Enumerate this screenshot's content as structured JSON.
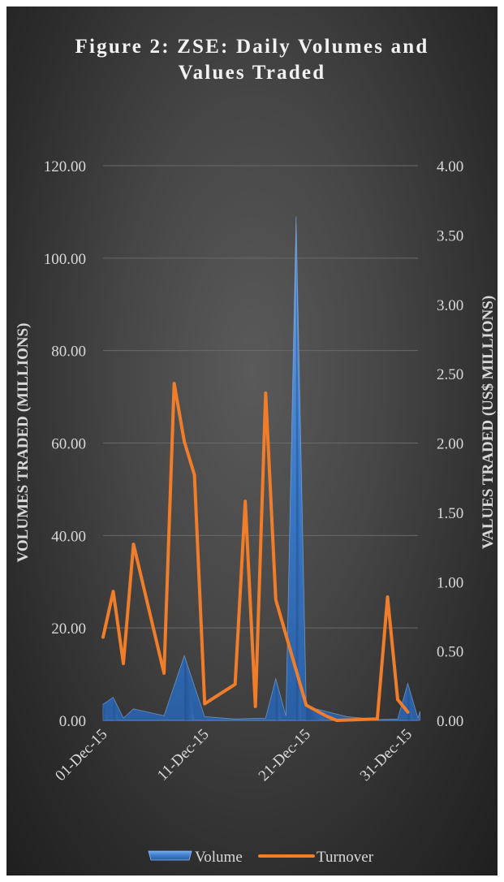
{
  "chart_data": {
    "type": "area+line",
    "title_lines": [
      "Figure 2: ZSE: Daily Volumes and",
      "Values Traded"
    ],
    "ylabel_left": "VOLUMES TRADED (MILLIONS)",
    "ylabel_right": "VALUES TRADED (US$ MILLIONS)",
    "ylim_left": [
      0,
      120
    ],
    "ylim_right": [
      0,
      4
    ],
    "yticks_left": [
      "0.00",
      "20.00",
      "40.00",
      "60.00",
      "80.00",
      "100.00",
      "120.00"
    ],
    "yticks_right": [
      "0.00",
      "0.50",
      "1.00",
      "1.50",
      "2.00",
      "2.50",
      "3.00",
      "3.50",
      "4.00"
    ],
    "xticks": [
      {
        "day": 1,
        "label": "01-Dec-15"
      },
      {
        "day": 11,
        "label": "11-Dec-15"
      },
      {
        "day": 21,
        "label": "21-Dec-15"
      },
      {
        "day": 31,
        "label": "31-Dec-15"
      }
    ],
    "xlim_days": [
      1,
      32
    ],
    "grid": true,
    "legend_position": "bottom",
    "series": [
      {
        "name": "Volume",
        "kind": "area",
        "axis": "left",
        "color": "#4f8ad6",
        "points": [
          {
            "day": 1,
            "value": 3.5
          },
          {
            "day": 2,
            "value": 5.0
          },
          {
            "day": 3,
            "value": 0.5
          },
          {
            "day": 4,
            "value": 2.5
          },
          {
            "day": 7,
            "value": 1.0
          },
          {
            "day": 9,
            "value": 14.0
          },
          {
            "day": 11,
            "value": 0.8
          },
          {
            "day": 14,
            "value": 0.3
          },
          {
            "day": 17,
            "value": 0.5
          },
          {
            "day": 18,
            "value": 9.0
          },
          {
            "day": 19,
            "value": 1.0
          },
          {
            "day": 20,
            "value": 109.0
          },
          {
            "day": 21,
            "value": 3.0
          },
          {
            "day": 25,
            "value": 0.8
          },
          {
            "day": 28,
            "value": 0.2
          },
          {
            "day": 30,
            "value": 0.3
          },
          {
            "day": 31,
            "value": 8.0
          },
          {
            "day": 32,
            "value": 0.5
          },
          {
            "day": 32.5,
            "value": 2.0
          },
          {
            "day": 33,
            "value": 0.3
          }
        ]
      },
      {
        "name": "Turnover",
        "kind": "line",
        "axis": "right",
        "color": "#f07d2a",
        "points": [
          {
            "day": 1,
            "value": 0.6
          },
          {
            "day": 2,
            "value": 0.93
          },
          {
            "day": 3,
            "value": 0.41
          },
          {
            "day": 4,
            "value": 1.27
          },
          {
            "day": 7,
            "value": 0.34
          },
          {
            "day": 8,
            "value": 2.43
          },
          {
            "day": 9,
            "value": 2.01
          },
          {
            "day": 10,
            "value": 1.77
          },
          {
            "day": 11,
            "value": 0.12
          },
          {
            "day": 14,
            "value": 0.26
          },
          {
            "day": 15,
            "value": 1.58
          },
          {
            "day": 16,
            "value": 0.1
          },
          {
            "day": 17,
            "value": 2.36
          },
          {
            "day": 18,
            "value": 0.87
          },
          {
            "day": 21,
            "value": 0.11
          },
          {
            "day": 23,
            "value": 0.03
          },
          {
            "day": 24,
            "value": 0.0
          },
          {
            "day": 28,
            "value": 0.01
          },
          {
            "day": 29,
            "value": 0.89
          },
          {
            "day": 30,
            "value": 0.15
          },
          {
            "day": 31,
            "value": 0.06
          }
        ]
      }
    ]
  }
}
